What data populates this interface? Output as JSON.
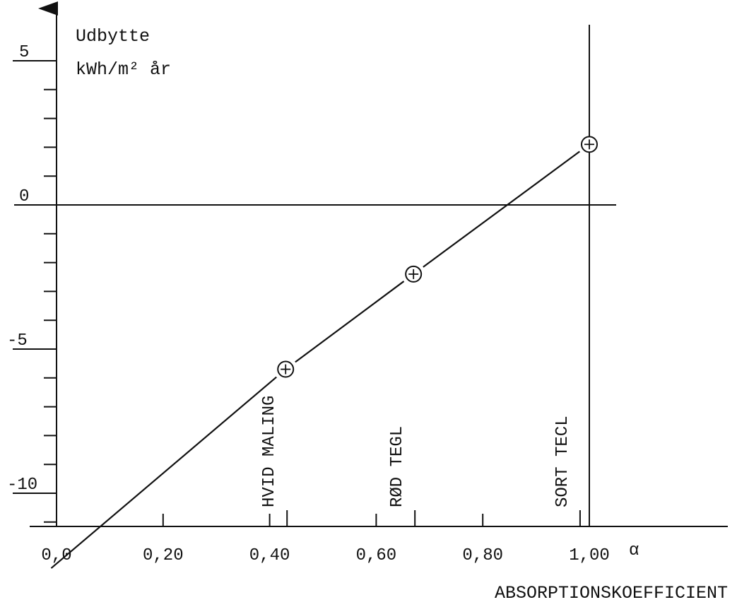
{
  "chart_data": {
    "type": "line",
    "ylabel_line1": "Udbytte",
    "ylabel_line2": "kWh/m² år",
    "xlabel": "ABSORPTIONSKOEFFICIENT",
    "alpha_symbol": "α",
    "xlim": [
      0.0,
      1.0
    ],
    "ylim": [
      -12,
      6.5
    ],
    "x_ticks": [
      0.0,
      0.2,
      0.4,
      0.6,
      0.8,
      1.0
    ],
    "x_tick_labels": [
      "0,0",
      "0,20",
      "0,40",
      "0,60",
      "0,80",
      "1,00"
    ],
    "y_ticks_labeled": [
      5,
      0,
      -5,
      -10
    ],
    "y_tick_labels": [
      "5",
      "0",
      "-5",
      "-10"
    ],
    "y_minor_ticks": [
      4,
      3,
      2,
      1,
      -1,
      -2,
      -3,
      -4,
      -6,
      -7,
      -8,
      -9,
      -11
    ],
    "series": [
      {
        "x": [
          -0.01,
          0.43,
          0.67,
          1.0
        ],
        "y": [
          -12.6,
          -5.7,
          -2.4,
          2.1
        ]
      }
    ],
    "markers": [
      {
        "x": 0.43,
        "y": -5.7
      },
      {
        "x": 0.67,
        "y": -2.4
      },
      {
        "x": 1.0,
        "y": 2.1
      }
    ],
    "materials": [
      {
        "label": "HVID MALING",
        "x": 0.43
      },
      {
        "label": "RØD TEGL",
        "x": 0.67
      },
      {
        "label": "SORT TECL",
        "x": 0.98
      }
    ],
    "reference_lines": {
      "horizontal_at_y": 0,
      "vertical_at_x": 1.0
    }
  }
}
